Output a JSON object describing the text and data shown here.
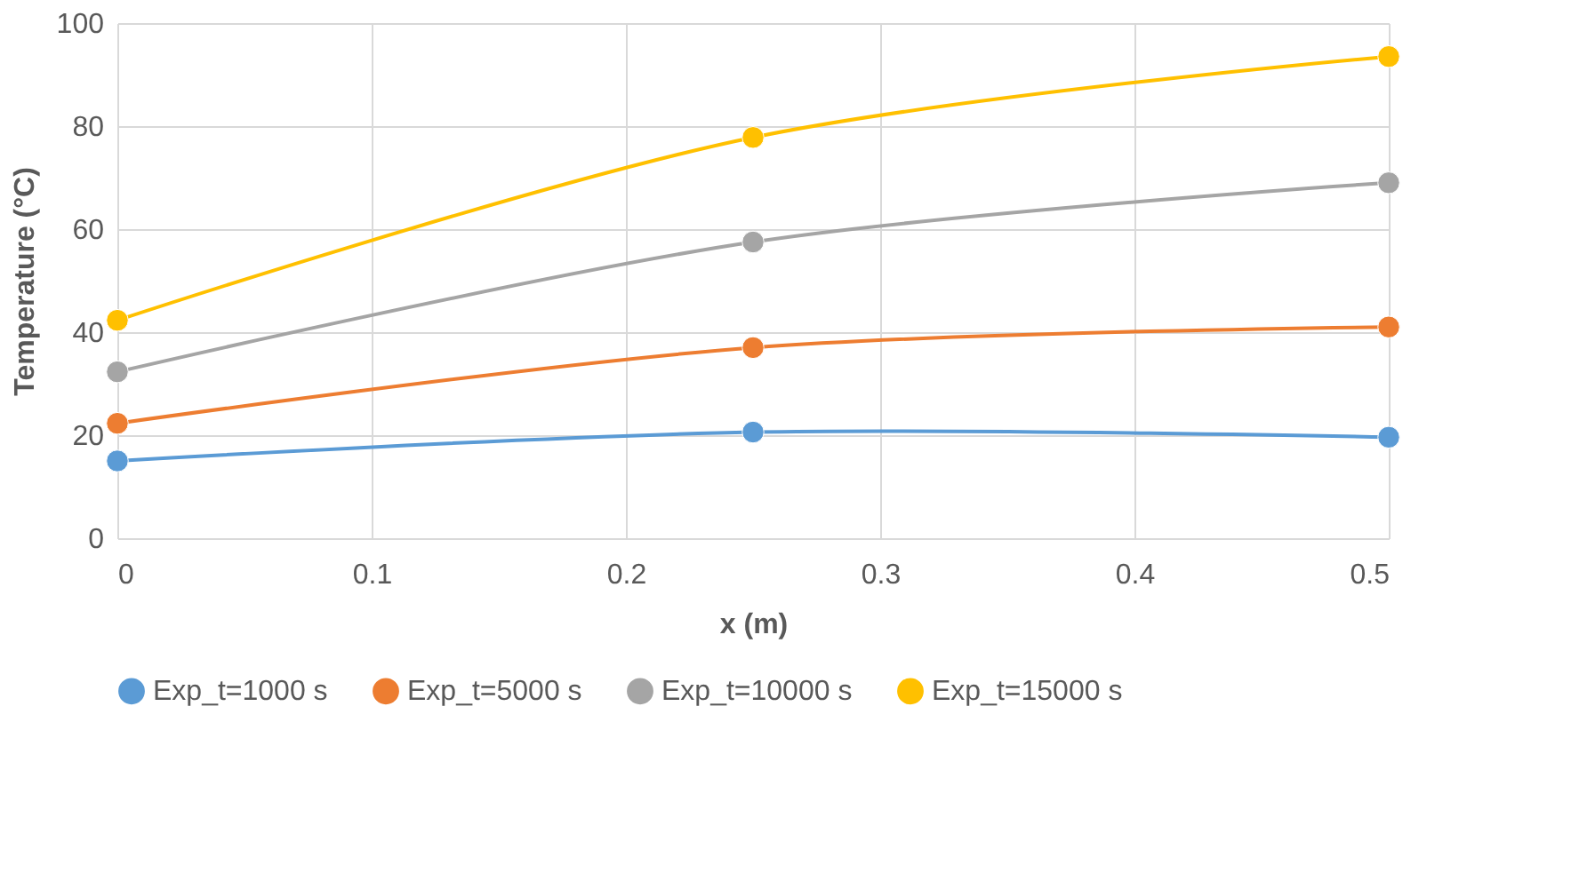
{
  "chart_data": {
    "type": "line",
    "xlabel": "x (m)",
    "ylabel": "Temperature  (°C)",
    "x": [
      0,
      0.25,
      0.5
    ],
    "series": [
      {
        "name": "Exp_t=1000 s",
        "color": "#5b9bd5",
        "values": [
          15,
          20.6,
          19.6
        ]
      },
      {
        "name": "Exp_t=5000 s",
        "color": "#ed7d31",
        "values": [
          22.3,
          37,
          41
        ]
      },
      {
        "name": "Exp_t=10000 s",
        "color": "#a5a5a5",
        "values": [
          32.3,
          57.5,
          69
        ]
      },
      {
        "name": "Exp_t=15000 s",
        "color": "#ffc000",
        "values": [
          42.3,
          77.8,
          93.5
        ]
      }
    ],
    "xlim": [
      0,
      0.5
    ],
    "xticks": [
      0,
      0.1,
      0.2,
      0.3,
      0.4,
      0.5
    ],
    "ylim": [
      0,
      100
    ],
    "yticks": [
      0,
      20,
      40,
      60,
      80,
      100
    ],
    "grid": true,
    "legend": "bottom",
    "marker": "circle",
    "line_style": "solid"
  }
}
